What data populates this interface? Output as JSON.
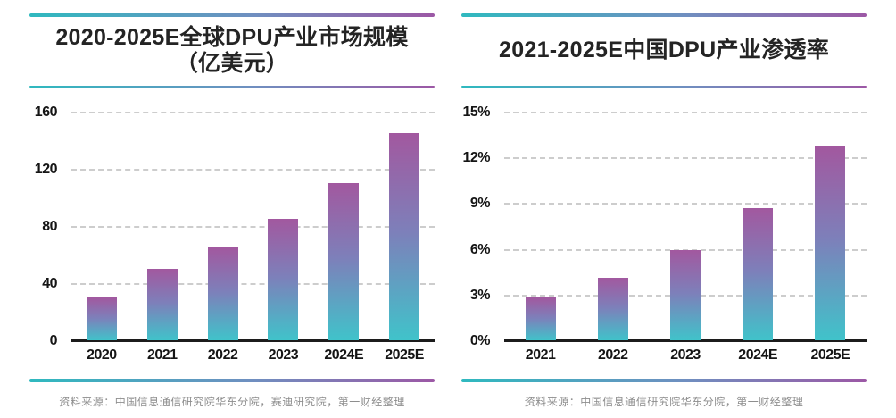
{
  "colors": {
    "background": "#ffffff",
    "accent_gradient_start": "#2fb9bf",
    "accent_gradient_end": "#9c58a5",
    "bar_gradient_top": "#a2589f",
    "bar_gradient_mid": "#7d80ba",
    "bar_gradient_bottom": "#40c3ca",
    "gridline": "#cdcdcd",
    "axis": "#1c1c1c",
    "title_text": "#242424",
    "tick_text": "#151515",
    "source_text": "#8d8d8d"
  },
  "panels": [
    {
      "title_lines": [
        "2020-2025E全球DPU产业市场规模",
        "（亿美元）"
      ],
      "source": "资料来源：中国信息通信研究院华东分院，赛迪研究院，第一财经整理"
    },
    {
      "title_lines": [
        "2021-2025E中国DPU产业渗透率"
      ],
      "source": "资料来源：中国信息通信研究院华东分院，第一财经整理"
    }
  ],
  "chart_data": [
    {
      "type": "bar",
      "title": "2020-2025E全球DPU产业市场规模（亿美元）",
      "unit": "亿美元",
      "categories": [
        "2020",
        "2021",
        "2022",
        "2023",
        "2024E",
        "2025E"
      ],
      "values": [
        30,
        50,
        65,
        85,
        110,
        145
      ],
      "xlabel": "",
      "ylabel": "",
      "ylim": [
        0,
        160
      ],
      "yticks": [
        0,
        40,
        80,
        120,
        160
      ],
      "ytick_labels": [
        "0",
        "40",
        "80",
        "120",
        "160"
      ],
      "grid": "horizontal-dashed",
      "legend": "none"
    },
    {
      "type": "bar",
      "title": "2021-2025E中国DPU产业渗透率",
      "unit": "%",
      "categories": [
        "2021",
        "2022",
        "2023",
        "2024E",
        "2025E"
      ],
      "values": [
        2.8,
        4.1,
        5.9,
        8.7,
        12.7
      ],
      "xlabel": "",
      "ylabel": "",
      "ylim": [
        0,
        15
      ],
      "yticks": [
        0,
        3,
        6,
        9,
        12,
        15
      ],
      "ytick_labels": [
        "0%",
        "3%",
        "6%",
        "9%",
        "12%",
        "15%"
      ],
      "grid": "horizontal-dashed",
      "legend": "none"
    }
  ]
}
